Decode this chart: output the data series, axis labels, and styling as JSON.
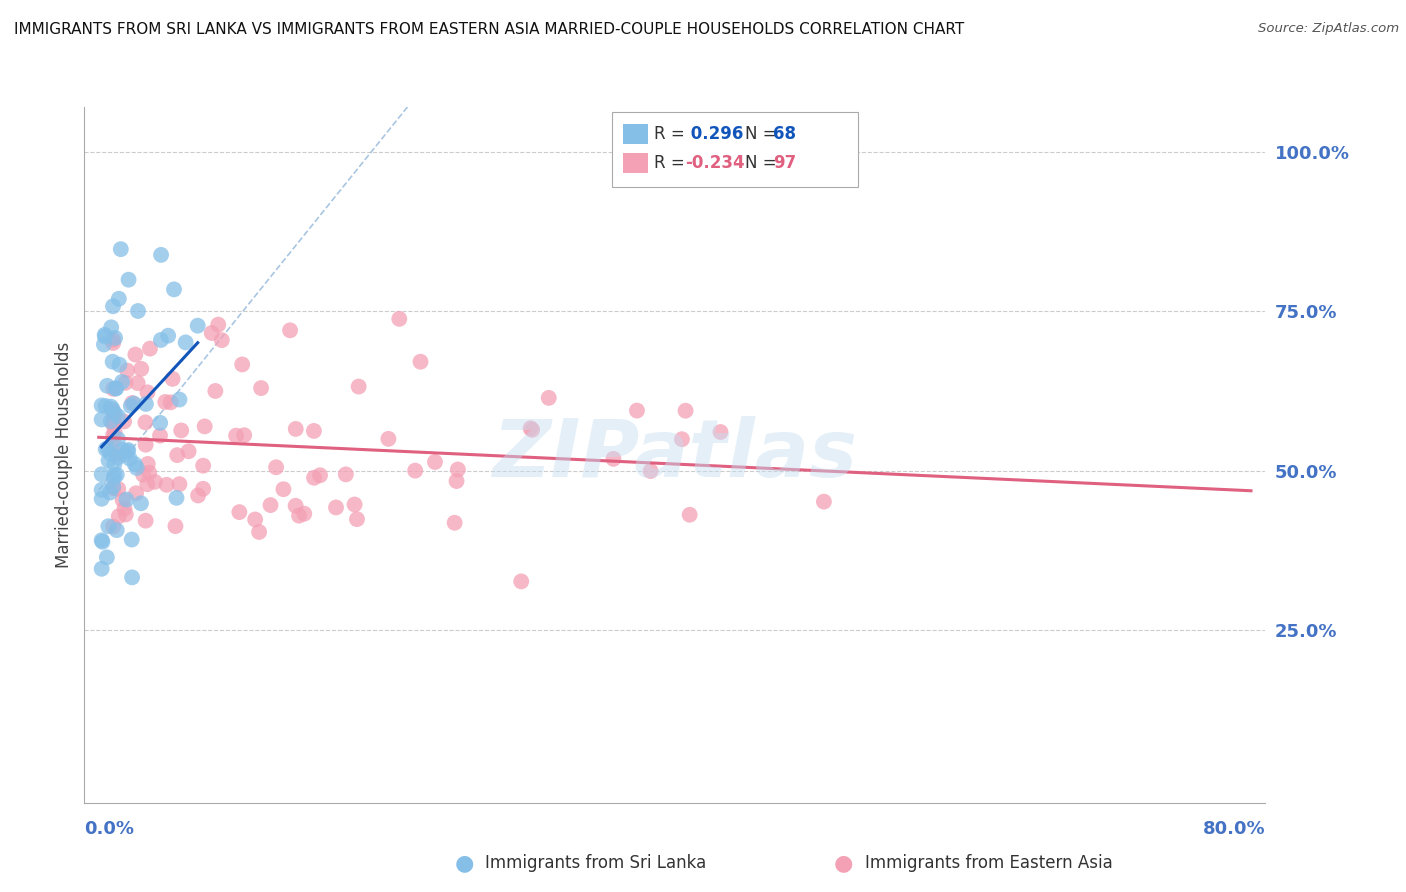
{
  "title": "IMMIGRANTS FROM SRI LANKA VS IMMIGRANTS FROM EASTERN ASIA MARRIED-COUPLE HOUSEHOLDS CORRELATION CHART",
  "source": "Source: ZipAtlas.com",
  "ylabel": "Married-couple Households",
  "xlim": [
    0.0,
    0.8
  ],
  "ylim": [
    0.0,
    1.05
  ],
  "r_sri_lanka": 0.296,
  "n_sri_lanka": 68,
  "r_eastern_asia": -0.234,
  "n_eastern_asia": 97,
  "color_sri_lanka": "#85bfe8",
  "color_eastern_asia": "#f4a0b5",
  "color_line_sri_lanka": "#1155bb",
  "color_line_eastern_asia": "#e06080",
  "color_dashed": "#99bbdd",
  "watermark": "ZIPatlas",
  "legend_r_color": "#1155bb",
  "legend_r2_color": "#e06080",
  "ytick_color": "#4472c4",
  "xtick_color": "#4472c4",
  "legend_label_sl": "Immigrants from Sri Lanka",
  "legend_label_ea": "Immigrants from Eastern Asia"
}
